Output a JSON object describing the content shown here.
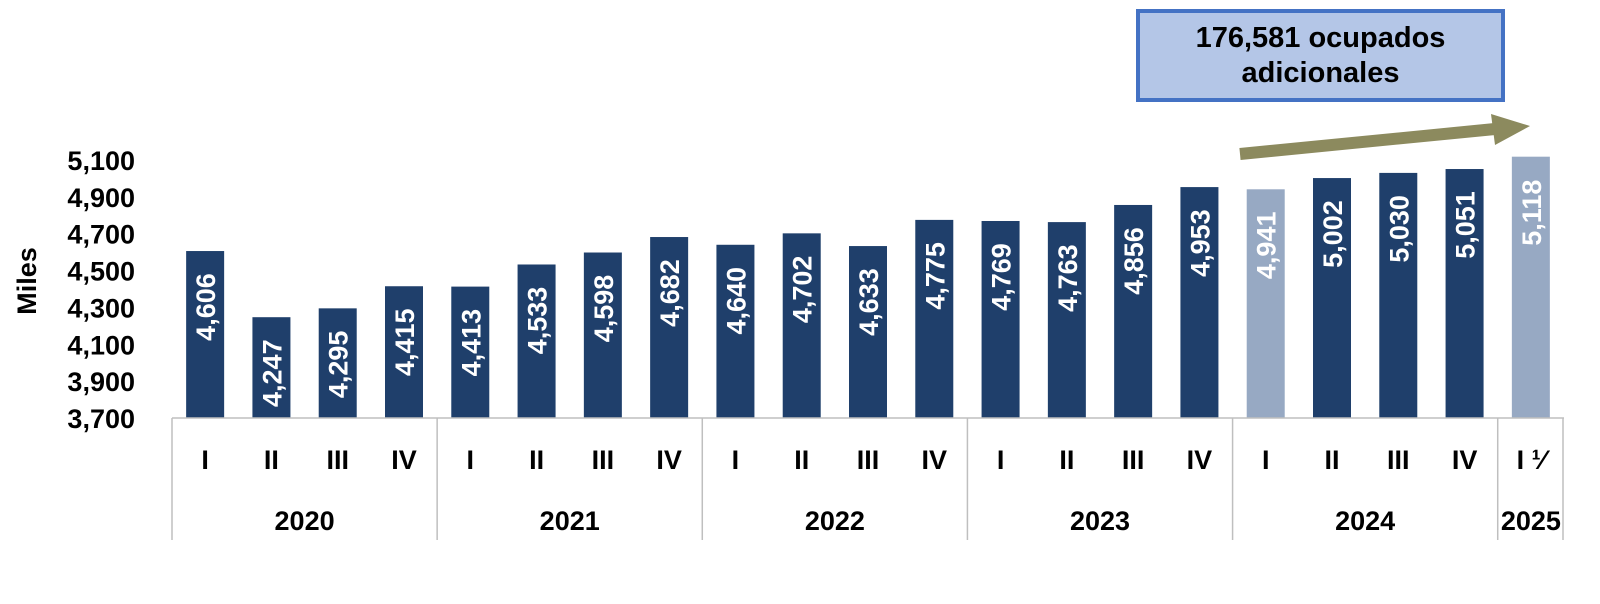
{
  "chart_data": {
    "type": "bar",
    "title": "",
    "xlabel": "",
    "ylabel": "Miles",
    "ylim": [
      3700,
      5100
    ],
    "yticks": [
      "3,700",
      "3,900",
      "4,100",
      "4,300",
      "4,500",
      "4,700",
      "4,900",
      "5,100"
    ],
    "categories": [
      "I",
      "II",
      "III",
      "IV",
      "I",
      "II",
      "III",
      "IV",
      "I",
      "II",
      "III",
      "IV",
      "I",
      "II",
      "III",
      "IV",
      "I",
      "II",
      "III",
      "IV",
      "I ¹⁄"
    ],
    "years": [
      {
        "label": "2020",
        "span": 4
      },
      {
        "label": "2021",
        "span": 4
      },
      {
        "label": "2022",
        "span": 4
      },
      {
        "label": "2023",
        "span": 4
      },
      {
        "label": "2024",
        "span": 4
      },
      {
        "label": "2025",
        "span": 1
      }
    ],
    "values": [
      4606,
      4247,
      4295,
      4415,
      4413,
      4533,
      4598,
      4682,
      4640,
      4702,
      4633,
      4775,
      4769,
      4763,
      4856,
      4953,
      4941,
      5002,
      5030,
      5051,
      5118
    ],
    "labels": [
      "4,606",
      "4,247",
      "4,295",
      "4,415",
      "4,413",
      "4,533",
      "4,598",
      "4,682",
      "4,640",
      "4,702",
      "4,633",
      "4,775",
      "4,769",
      "4,763",
      "4,856",
      "4,953",
      "4,941",
      "5,002",
      "5,030",
      "5,051",
      "5,118"
    ],
    "highlight": [
      16,
      20
    ],
    "colors": {
      "bar": "#1f3f6b",
      "highlight": "#97a9c3",
      "arrow": "#8c8a5e",
      "callout_fill": "#b4c6e7",
      "callout_border": "#4472c4"
    },
    "annotation": {
      "lines": [
        "176,581 ocupados",
        "adicionales"
      ]
    },
    "grid": false,
    "legend": "none"
  }
}
